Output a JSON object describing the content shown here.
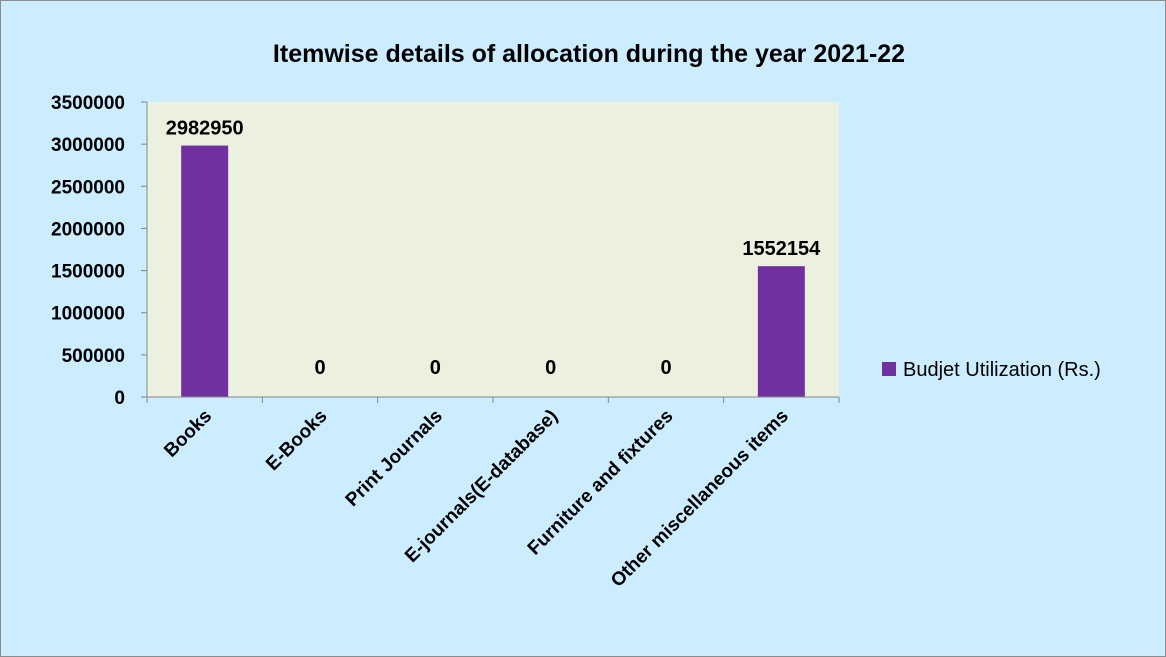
{
  "chart_data": {
    "type": "bar",
    "title": "Itemwise details of allocation during the year 2021-22",
    "xlabel": "",
    "ylabel": "",
    "categories": [
      "Books",
      "E-Books",
      "Print Journals",
      "E-journals(E-database)",
      "Furniture and fixtures",
      "Other miscellaneous items"
    ],
    "series": [
      {
        "name": "Budjet Utilization (Rs.)",
        "values": [
          2982950,
          0,
          0,
          0,
          0,
          1552154
        ],
        "data_labels": [
          "2982950",
          "0",
          "0",
          "0",
          "0",
          "1552154"
        ]
      }
    ],
    "ylim": [
      0,
      3500000
    ],
    "yticks": [
      0,
      500000,
      1000000,
      1500000,
      2000000,
      2500000,
      3000000,
      3500000
    ],
    "ytick_labels": [
      "0",
      "500000",
      "1000000",
      "1500000",
      "2000000",
      "2500000",
      "3000000",
      "3500000"
    ],
    "grid": false,
    "legend_position": "right",
    "colors": {
      "bar": "#7030A0",
      "chart_background": "#CCECFF",
      "plot_background": "#EBF1DE",
      "axis": "#868686"
    }
  }
}
